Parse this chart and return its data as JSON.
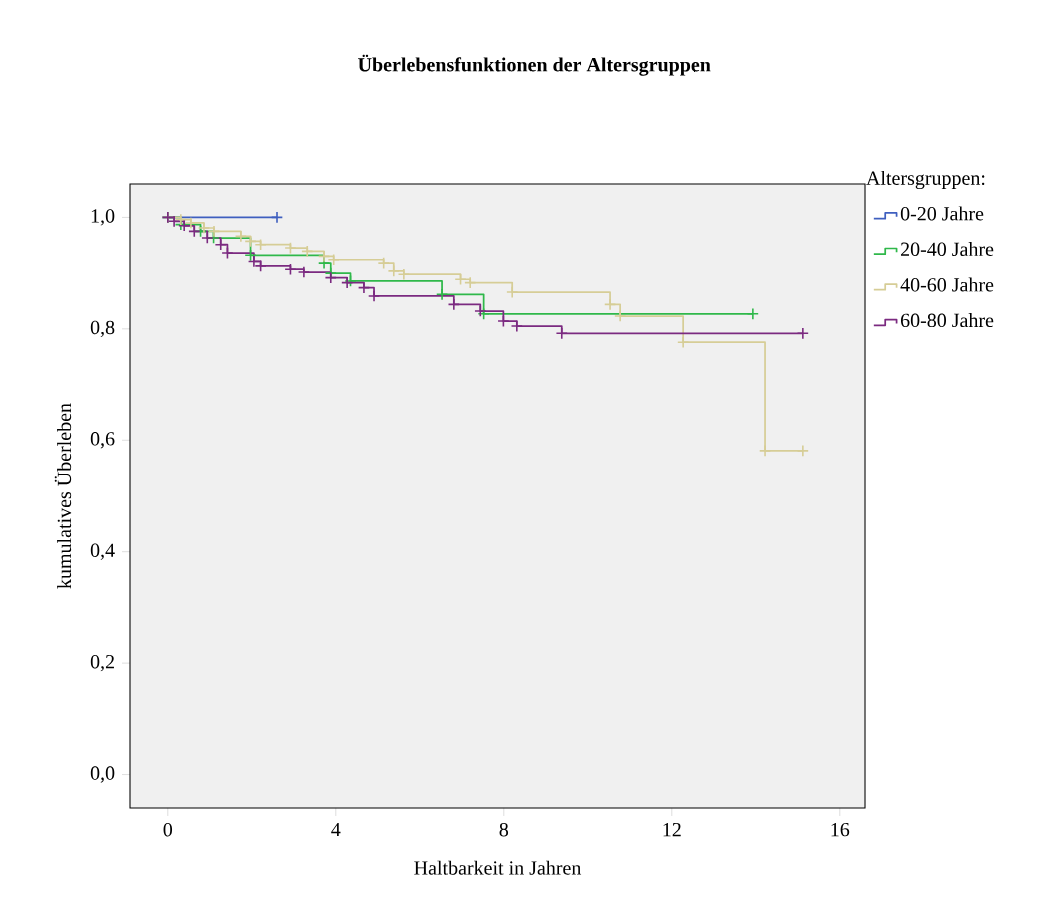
{
  "chart_data": {
    "type": "step",
    "title": "Überlebensfunktionen der Altersgruppen",
    "xlabel": "Haltbarkeit in Jahren",
    "ylabel": "kumulatives Überleben",
    "legend_title": "Altersgruppen:",
    "legend": "right",
    "marker": "cross",
    "grid": false,
    "xlim": [
      -0.9,
      16.6
    ],
    "ylim": [
      -0.06,
      1.06
    ],
    "xticks": [
      0,
      4,
      8,
      12,
      16
    ],
    "yticks": [
      {
        "value": 0,
        "label": "0,0"
      },
      {
        "value": 0.2,
        "label": "0,2"
      },
      {
        "value": 0.4,
        "label": "0,4"
      },
      {
        "value": 0.6,
        "label": "0,6"
      },
      {
        "value": 0.8,
        "label": "0,8"
      },
      {
        "value": 1.0,
        "label": "1,0"
      }
    ],
    "series": [
      {
        "name": "0-20 Jahre",
        "color": "#3f5fbf",
        "x": [
          0,
          2.6
        ],
        "values": [
          1.0,
          1.0
        ]
      },
      {
        "name": "20-40 Jahre",
        "color": "#2fb84a",
        "x": [
          0,
          0.31,
          0.78,
          1.09,
          1.97,
          3.72,
          3.88,
          4.35,
          6.53,
          7.52,
          13.93
        ],
        "values": [
          1.0,
          0.987,
          0.975,
          0.963,
          0.932,
          0.918,
          0.9,
          0.886,
          0.862,
          0.827,
          0.827
        ]
      },
      {
        "name": "40-60 Jahre",
        "color": "#d6cd96",
        "x": [
          0,
          0.31,
          0.55,
          0.86,
          1.1,
          1.74,
          1.97,
          2.21,
          2.92,
          3.32,
          3.72,
          3.95,
          5.14,
          5.38,
          5.62,
          6.97,
          7.2,
          8.2,
          10.53,
          10.77,
          12.27,
          14.22,
          15.12
        ],
        "values": [
          1.0,
          0.996,
          0.99,
          0.981,
          0.975,
          0.966,
          0.957,
          0.951,
          0.945,
          0.939,
          0.93,
          0.924,
          0.918,
          0.904,
          0.898,
          0.889,
          0.883,
          0.866,
          0.844,
          0.823,
          0.776,
          0.581,
          0.581
        ]
      },
      {
        "name": "60-80 Jahre",
        "color": "#7b2a80",
        "x": [
          0,
          0.15,
          0.39,
          0.63,
          0.94,
          1.26,
          1.42,
          2.05,
          2.21,
          2.92,
          3.24,
          3.88,
          4.27,
          4.67,
          4.91,
          6.81,
          7.44,
          7.99,
          8.31,
          9.38,
          15.12
        ],
        "values": [
          1.0,
          0.993,
          0.985,
          0.975,
          0.963,
          0.951,
          0.936,
          0.921,
          0.913,
          0.907,
          0.902,
          0.892,
          0.883,
          0.874,
          0.859,
          0.844,
          0.832,
          0.814,
          0.805,
          0.792,
          0.792
        ]
      }
    ]
  }
}
